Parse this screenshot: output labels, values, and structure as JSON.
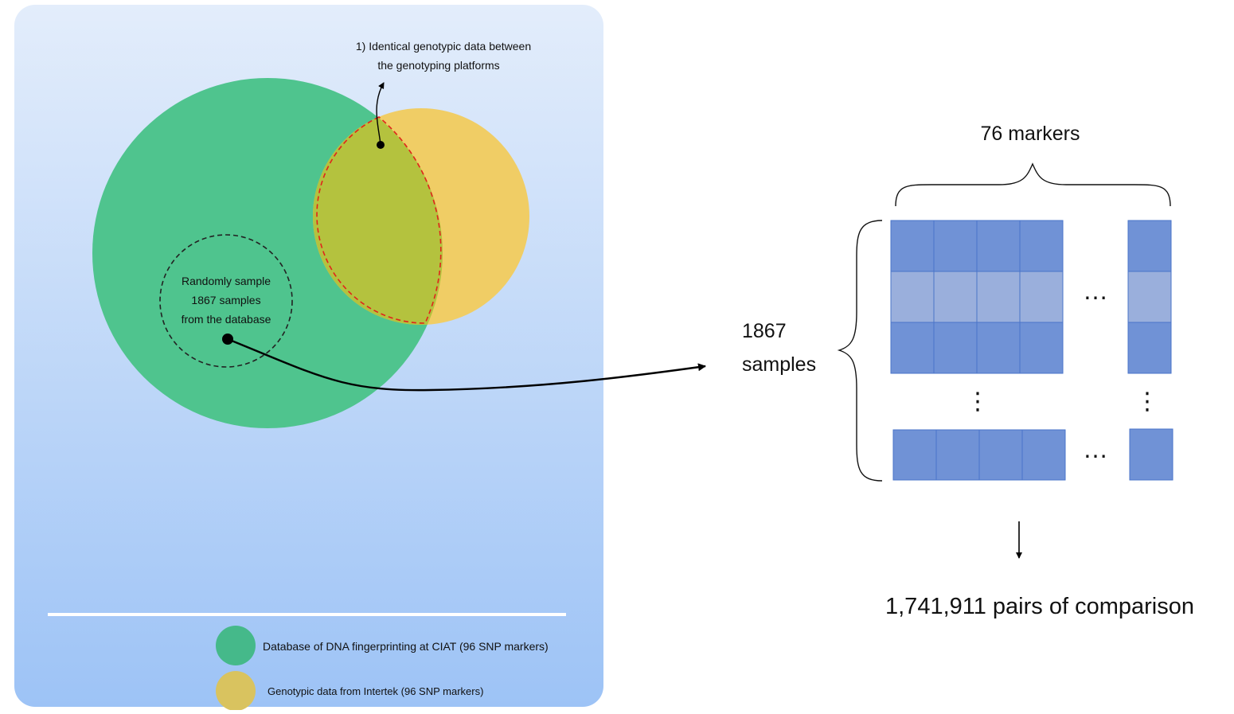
{
  "venn": {
    "annotation_line1": "1) Identical genotypic data between",
    "annotation_line2": "the genotyping platforms",
    "sample_line1": "Randomly sample",
    "sample_line2": "1867 samples",
    "sample_line3": "from the database",
    "colors": {
      "panel_top": "#e3edfb",
      "panel_bottom": "#9dc3f6",
      "database_circle": "#4fc48e",
      "intertek_circle": "#f0cd65",
      "overlap": "#b4c23e",
      "overlap_outline": "#e0241b"
    }
  },
  "legend": {
    "items": [
      {
        "label": "Database of DNA fingerprinting at CIAT (96 SNP markers)",
        "color": "#45b98a"
      },
      {
        "label": "Genotypic data from Intertek (96 SNP markers)",
        "color": "#d9c35f"
      }
    ]
  },
  "matrix": {
    "columns_label": "76 markers",
    "rows_label_line1": "1867",
    "rows_label_line2": "samples",
    "ellipsis_horizontal": "…",
    "ellipsis_vertical": "⋮",
    "colors": {
      "cell_dark": "#7092d6",
      "cell_light": "#9aafdc",
      "cell_border": "#4a74c9"
    }
  },
  "result": {
    "label": "1,741,911 pairs of comparison"
  }
}
